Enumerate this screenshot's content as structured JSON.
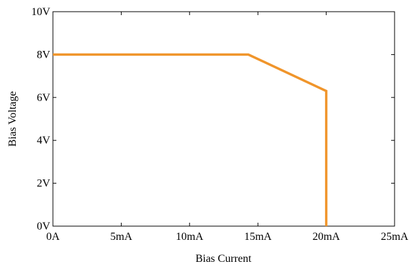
{
  "chart_data": {
    "type": "line",
    "xlabel": "Bias Current",
    "ylabel": "Bias Voltage",
    "xlim": [
      0,
      25
    ],
    "ylim": [
      0,
      10
    ],
    "x_unit": "mA",
    "y_unit": "V",
    "x_ticks": [
      0,
      5,
      10,
      15,
      20,
      25
    ],
    "y_ticks": [
      0,
      2,
      4,
      6,
      8,
      10
    ],
    "x_tick_labels": [
      "0A",
      "5mA",
      "10mA",
      "15mA",
      "20mA",
      "25mA"
    ],
    "y_tick_labels": [
      "0V",
      "2V",
      "4V",
      "6V",
      "8V",
      "10V"
    ],
    "grid": false,
    "legend": "none",
    "series": [
      {
        "color": "#F0952B",
        "x": [
          0,
          14.3,
          20,
          20
        ],
        "y": [
          8,
          8,
          6.3,
          0
        ]
      }
    ]
  }
}
